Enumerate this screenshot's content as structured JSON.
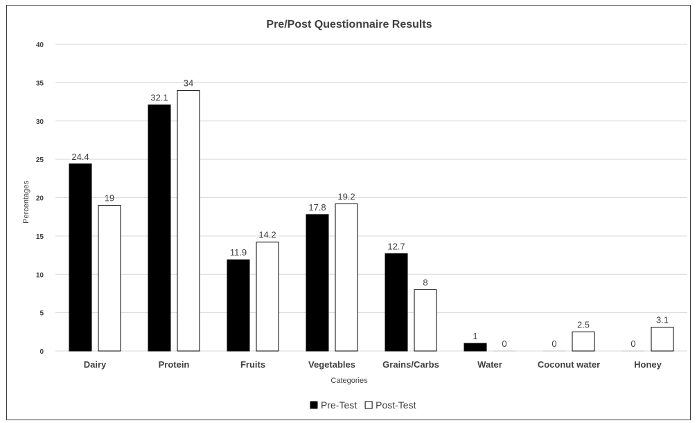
{
  "chart_data": {
    "type": "bar",
    "title": "Pre/Post Questionnaire Results",
    "xlabel": "Categories",
    "ylabel": "Percentages",
    "ylim": [
      0,
      40
    ],
    "yticks": [
      0,
      5,
      10,
      15,
      20,
      25,
      30,
      35,
      40
    ],
    "grid": true,
    "legend_position": "bottom",
    "categories": [
      "Dairy",
      "Protein",
      "Fruits",
      "Vegetables",
      "Grains/Carbs",
      "Water",
      "Coconut water",
      "Honey"
    ],
    "series": [
      {
        "name": "Pre-Test",
        "values": [
          24.4,
          32.1,
          11.9,
          17.8,
          12.7,
          1,
          0,
          0
        ],
        "fill": "#000000",
        "stroke": "#000000"
      },
      {
        "name": "Post-Test",
        "values": [
          19,
          34,
          14.2,
          19.2,
          8,
          0,
          2.5,
          3.1
        ],
        "fill": "#ffffff",
        "stroke": "#000000"
      }
    ]
  }
}
